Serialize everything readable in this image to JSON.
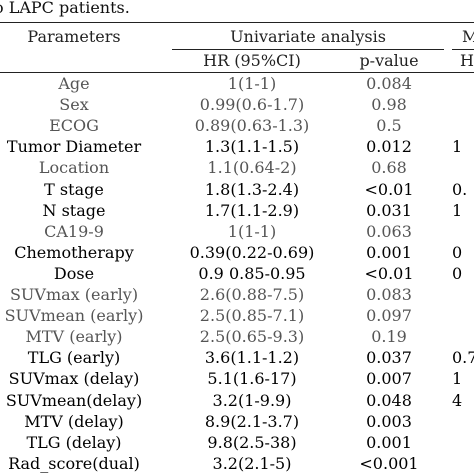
{
  "caption": "LAPC patients.",
  "headers": {
    "parameters": "Parameters",
    "univariate": "Univariate analysis",
    "multivariate_clip": "M",
    "hr": "HR (95%CI)",
    "p_value": "p-value",
    "right_clip": "H"
  },
  "rows": [
    {
      "param": "Age",
      "hr": "1(1-1)",
      "p": "0.084",
      "right": "",
      "emphasis": false
    },
    {
      "param": "Sex",
      "hr": "0.99(0.6-1.7)",
      "p": "0.98",
      "right": "",
      "emphasis": false
    },
    {
      "param": "ECOG",
      "hr": "0.89(0.63-1.3)",
      "p": "0.5",
      "right": "",
      "emphasis": false
    },
    {
      "param": "Tumor Diameter",
      "hr": "1.3(1.1-1.5)",
      "p": "0.012",
      "right": "1",
      "emphasis": true
    },
    {
      "param": "Location",
      "hr": "1.1(0.64-2)",
      "p": "0.68",
      "right": "",
      "emphasis": false
    },
    {
      "param": "T stage",
      "hr": "1.8(1.3-2.4)",
      "p": "<0.01",
      "right": "0.",
      "emphasis": true
    },
    {
      "param": "N stage",
      "hr": "1.7(1.1-2.9)",
      "p": "0.031",
      "right": "1",
      "emphasis": true
    },
    {
      "param": "CA19-9",
      "hr": "1(1-1)",
      "p": "0.063",
      "right": "",
      "emphasis": false
    },
    {
      "param": "Chemotherapy",
      "hr": "0.39(0.22-0.69)",
      "p": "0.001",
      "right": "0",
      "emphasis": true
    },
    {
      "param": "Dose",
      "hr": "0.9 0.85-0.95",
      "p": "<0.01",
      "right": "0",
      "emphasis": true
    },
    {
      "param": "SUVmax (early)",
      "hr": "2.6(0.88-7.5)",
      "p": "0.083",
      "right": "",
      "emphasis": false
    },
    {
      "param": "SUVmean (early)",
      "hr": "2.5(0.85-7.1)",
      "p": "0.097",
      "right": "",
      "emphasis": false
    },
    {
      "param": "MTV (early)",
      "hr": "2.5(0.65-9.3)",
      "p": "0.19",
      "right": "",
      "emphasis": false
    },
    {
      "param": "TLG (early)",
      "hr": "3.6(1.1-1.2)",
      "p": "0.037",
      "right": "0.7",
      "emphasis": true
    },
    {
      "param": "SUVmax (delay)",
      "hr": "5.1(1.6-17)",
      "p": "0.007",
      "right": "1",
      "emphasis": true
    },
    {
      "param": "SUVmean(delay)",
      "hr": "3.2(1-9.9)",
      "p": "0.048",
      "right": "4",
      "emphasis": true
    },
    {
      "param": "MTV (delay)",
      "hr": "8.9(2.1-3.7)",
      "p": "0.003",
      "right": "",
      "emphasis": true
    },
    {
      "param": "TLG (delay)",
      "hr": "9.8(2.5-38)",
      "p": "0.001",
      "right": "",
      "emphasis": true
    },
    {
      "param": "Rad_score(dual)",
      "hr": "3.2(2.1-5)",
      "p": "<0.001",
      "right": "",
      "emphasis": true
    }
  ]
}
